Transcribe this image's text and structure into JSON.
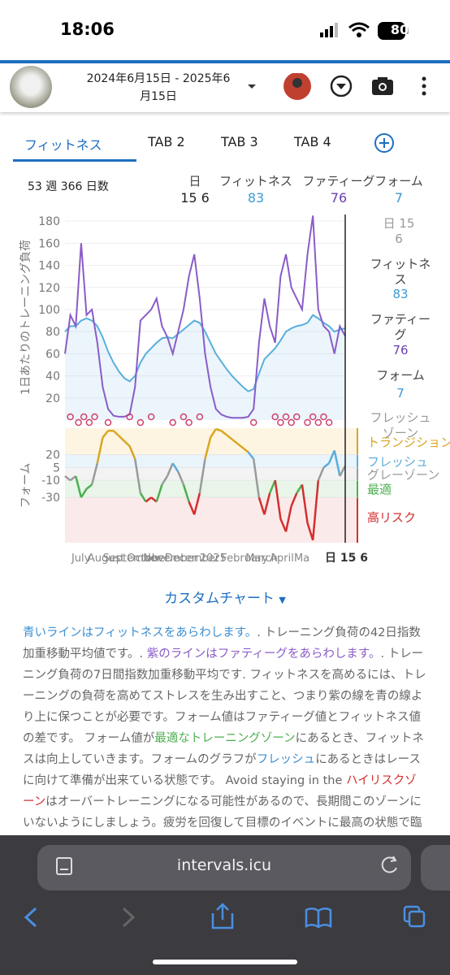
{
  "status_bar": {
    "time": "18:06",
    "battery": "80"
  },
  "header": {
    "date_range": "2024年6月15日 - 2025年6月15日"
  },
  "tabs": [
    "フィットネス",
    "TAB 2",
    "TAB 3",
    "TAB 4"
  ],
  "summary": {
    "period": "53 週 366 日数",
    "columns": [
      {
        "label": "日",
        "value": "15 6"
      },
      {
        "label": "フィットネス",
        "value": "83"
      },
      {
        "label": "ファティーグ",
        "value": "76"
      },
      {
        "label": "フォーム",
        "value": "7"
      }
    ]
  },
  "side_panel": {
    "date": "日 15 6",
    "fitness_label": "フィットネス",
    "fitness_value": "83",
    "fatigue_label": "ファティーグ",
    "fatigue_value": "76",
    "form_label": "フォーム",
    "form_value": "7",
    "zone": "フレッシュゾーン"
  },
  "chart_data": [
    {
      "type": "line",
      "y_label": "1日あたりのトレーニング負荷",
      "x": [
        0,
        1,
        2,
        3,
        4,
        5,
        6,
        7,
        8,
        9,
        10,
        11,
        12,
        13,
        14,
        15,
        16,
        17,
        18,
        19,
        20,
        21,
        22,
        23,
        24,
        25,
        26,
        27,
        28,
        29,
        30,
        31,
        32,
        33,
        34,
        35,
        36,
        37,
        38,
        39,
        40,
        41,
        42,
        43,
        44,
        45,
        46,
        47,
        48,
        49,
        50,
        51,
        52
      ],
      "xlim": [
        0,
        52
      ],
      "ylim": [
        0,
        186
      ],
      "yticks": [
        20,
        40,
        60,
        80,
        100,
        120,
        140,
        160,
        180
      ],
      "grid": true,
      "series": [
        {
          "name": "フィットネス",
          "color": "#5aaedd",
          "values": [
            80,
            85,
            85,
            90,
            92,
            90,
            85,
            75,
            62,
            52,
            44,
            38,
            35,
            40,
            52,
            60,
            65,
            70,
            74,
            75,
            74,
            78,
            82,
            86,
            90,
            88,
            80,
            70,
            60,
            53,
            46,
            40,
            35,
            30,
            26,
            28,
            42,
            55,
            60,
            65,
            72,
            80,
            83,
            85,
            86,
            88,
            95,
            92,
            88,
            85,
            80,
            82,
            83
          ]
        },
        {
          "name": "ファティーグ",
          "color": "#8a5cc8",
          "values": [
            60,
            95,
            85,
            160,
            95,
            100,
            70,
            30,
            10,
            4,
            3,
            3,
            5,
            30,
            90,
            95,
            100,
            110,
            85,
            75,
            60,
            80,
            100,
            130,
            150,
            110,
            60,
            30,
            10,
            5,
            3,
            2,
            2,
            2,
            3,
            10,
            70,
            110,
            85,
            70,
            130,
            150,
            120,
            110,
            100,
            150,
            185,
            100,
            85,
            80,
            60,
            85,
            76
          ]
        }
      ],
      "markers": {
        "color": "#d0406a",
        "x": [
          1,
          2.5,
          3.5,
          4.5,
          5.5,
          8,
          12,
          14,
          16,
          20,
          22,
          23,
          25,
          35,
          39,
          40,
          41,
          42,
          43,
          45,
          46,
          47,
          48,
          49
        ]
      }
    },
    {
      "type": "line",
      "y_label": "フォーム",
      "x": [
        0,
        1,
        2,
        3,
        4,
        5,
        6,
        7,
        8,
        9,
        10,
        11,
        12,
        13,
        14,
        15,
        16,
        17,
        18,
        19,
        20,
        21,
        22,
        23,
        24,
        25,
        26,
        27,
        28,
        29,
        30,
        31,
        32,
        33,
        34,
        35,
        36,
        37,
        38,
        39,
        40,
        41,
        42,
        43,
        44,
        45,
        46,
        47,
        48,
        49,
        50,
        51,
        52
      ],
      "xlim": [
        0,
        52
      ],
      "ylim": [
        -83,
        51
      ],
      "yticks": [
        20,
        5,
        -10,
        -30
      ],
      "xticks": [
        {
          "value": 1.2,
          "label": "July"
        },
        {
          "value": 4.2,
          "label": "August"
        },
        {
          "value": 7,
          "label": "September"
        },
        {
          "value": 11.5,
          "label": "October"
        },
        {
          "value": 14.5,
          "label": "November"
        },
        {
          "value": 18.5,
          "label": "December"
        },
        {
          "value": 25,
          "label": "2025"
        },
        {
          "value": 29,
          "label": "February"
        },
        {
          "value": 33.5,
          "label": "March"
        },
        {
          "value": 38,
          "label": "April"
        },
        {
          "value": 42.5,
          "label": "Ma"
        }
      ],
      "x_end_label": "日 15 6",
      "series": [
        {
          "name": "フォーム",
          "values": [
            -5,
            -10,
            -5,
            -30,
            -20,
            -15,
            10,
            40,
            48,
            48,
            42,
            36,
            30,
            15,
            -25,
            -35,
            -30,
            -35,
            -15,
            -5,
            10,
            0,
            -15,
            -35,
            -50,
            -25,
            15,
            40,
            50,
            48,
            43,
            38,
            33,
            28,
            23,
            15,
            -30,
            -50,
            -25,
            -10,
            -55,
            -70,
            -40,
            -25,
            -15,
            -60,
            -80,
            -10,
            5,
            10,
            25,
            -5,
            7
          ]
        }
      ],
      "zones": [
        {
          "name": "トランジション",
          "from": 20,
          "to": 51,
          "color": "#d9a521",
          "fill": "#fdf5e2"
        },
        {
          "name": "フレッシュ",
          "from": 5,
          "to": 20,
          "color": "#5aaedd",
          "fill": "#eaf4fb"
        },
        {
          "name": "グレーゾーン",
          "from": -10,
          "to": 5,
          "color": "#9a9a9a",
          "fill": "#f3f3f3"
        },
        {
          "name": "最適",
          "from": -30,
          "to": -10,
          "color": "#4caf50",
          "fill": "#e8f5e8"
        },
        {
          "name": "高リスク",
          "from": -83,
          "to": -30,
          "color": "#d32f2f",
          "fill": "#fbeaea"
        }
      ]
    }
  ],
  "custom_chart": "カスタムチャート",
  "description": {
    "segments": [
      {
        "text": "青いラインはフィットネスをあらわします。",
        "color": "#3d8fd1"
      },
      {
        "text": ". トレーニング負荷の42日指数加重移動平均値です。. ",
        "color": "#666666"
      },
      {
        "text": "紫のラインはファティーグをあらわします。",
        "color": "#8a5cc8"
      },
      {
        "text": ". トレーニング負荷の7日間指数加重移動平均です. フィットネスを高めるには、トレーニングの負荷を高めてストレスを生み出すこと、つまり紫の線を青の線より上に保つことが必要です。フォーム値はファティーグ値とフィットネス値の差です。 フォーム値が",
        "color": "#666666"
      },
      {
        "text": "最適なトレーニングゾーン",
        "color": "#4caf50"
      },
      {
        "text": "にあるとき、フィットネスは向上していきます。フォームのグラフが",
        "color": "#666666"
      },
      {
        "text": "フレッシュ",
        "color": "#3d8fd1"
      },
      {
        "text": "にあるときはレースに向けて準備が出来ている状態です。 Avoid staying in the ",
        "color": "#666666"
      },
      {
        "text": "ハイリスクゾーン",
        "color": "#d32f2f"
      },
      {
        "text": "はオーバートレーニングになる可能性があるので、長期間このゾーンにいないようにしましょう。疲労を回復して目標のイベントに最高の状態で臨むためには、トレーニングの",
        "color": "#666666"
      }
    ]
  },
  "browser": {
    "url": "intervals.icu"
  }
}
